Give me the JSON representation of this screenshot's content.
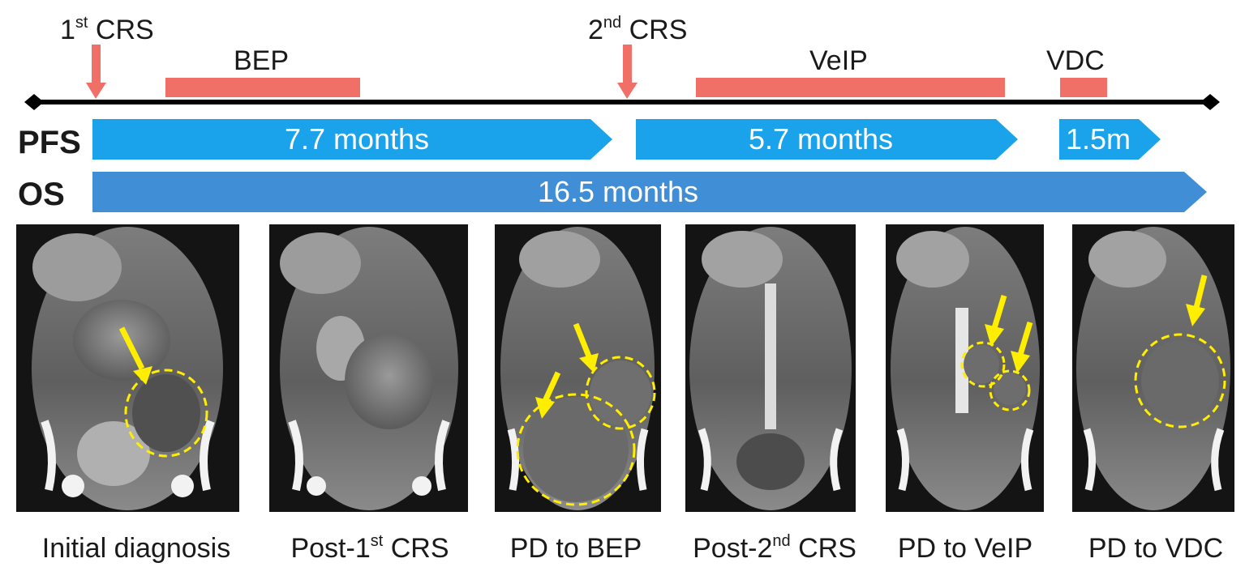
{
  "events": {
    "first_crs": {
      "main": "1",
      "sup": "st",
      "rest": " CRS"
    },
    "second_crs": {
      "main": "2",
      "sup": "nd",
      "rest": " CRS"
    }
  },
  "regimens": {
    "bep": "BEP",
    "veip": "VeIP",
    "vdc": "VDC"
  },
  "rows": {
    "pfs_label": "PFS",
    "os_label": "OS"
  },
  "durations": {
    "pfs_1": "7.7 months",
    "pfs_2": "5.7 months",
    "pfs_3": "1.5m",
    "os": "16.5 months"
  },
  "captions": {
    "c1": "Initial diagnosis",
    "c2": {
      "pre": "Post-1",
      "sup": "st",
      "post": " CRS"
    },
    "c3": "PD to BEP",
    "c4": {
      "pre": "Post-2",
      "sup": "nd",
      "post": " CRS"
    },
    "c5": "PD to VeIP",
    "c6": "PD to VDC"
  },
  "colors": {
    "regimen_bar": "#f07067",
    "pfs_arrow": "#1aa3ea",
    "os_arrow": "#3f8ed6",
    "timeline": "#000000",
    "annotation": "#ffee00",
    "scan_bg": "#6e6e6e"
  }
}
